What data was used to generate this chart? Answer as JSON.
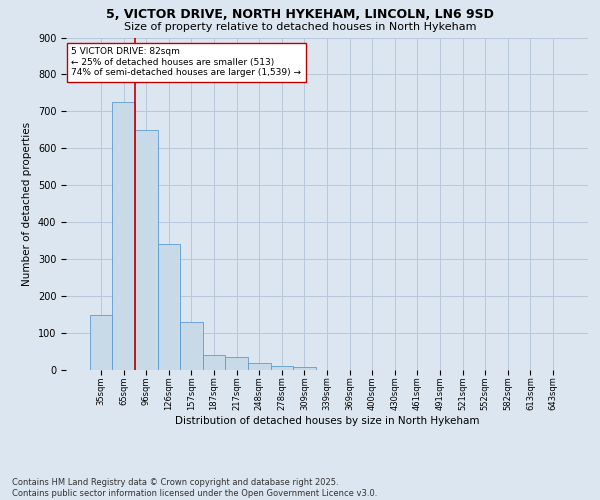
{
  "title1": "5, VICTOR DRIVE, NORTH HYKEHAM, LINCOLN, LN6 9SD",
  "title2": "Size of property relative to detached houses in North Hykeham",
  "xlabel": "Distribution of detached houses by size in North Hykeham",
  "ylabel": "Number of detached properties",
  "bar_color": "#c8d9e8",
  "bar_edge_color": "#5b9bd5",
  "grid_color": "#b8c8d8",
  "bg_color": "#dce6f0",
  "categories": [
    "35sqm",
    "65sqm",
    "96sqm",
    "126sqm",
    "157sqm",
    "187sqm",
    "217sqm",
    "248sqm",
    "278sqm",
    "309sqm",
    "339sqm",
    "369sqm",
    "400sqm",
    "430sqm",
    "461sqm",
    "491sqm",
    "521sqm",
    "552sqm",
    "582sqm",
    "613sqm",
    "643sqm"
  ],
  "values": [
    150,
    725,
    650,
    340,
    130,
    40,
    35,
    20,
    10,
    8,
    0,
    0,
    0,
    0,
    0,
    0,
    0,
    0,
    0,
    0,
    0
  ],
  "vline_x": 1.5,
  "vline_color": "#c00000",
  "annotation_text": "5 VICTOR DRIVE: 82sqm\n← 25% of detached houses are smaller (513)\n74% of semi-detached houses are larger (1,539) →",
  "annotation_box_color": "#ffffff",
  "annotation_box_edge": "#c00000",
  "ylim": [
    0,
    900
  ],
  "yticks": [
    0,
    100,
    200,
    300,
    400,
    500,
    600,
    700,
    800,
    900
  ],
  "footnote": "Contains HM Land Registry data © Crown copyright and database right 2025.\nContains public sector information licensed under the Open Government Licence v3.0.",
  "title_fontsize": 9,
  "subtitle_fontsize": 8,
  "footnote_fontsize": 6
}
